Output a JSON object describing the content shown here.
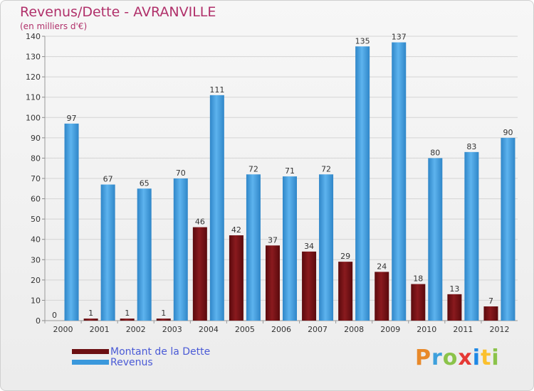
{
  "title": "Revenus/Dette - AVRANVILLE",
  "subtitle": "(en milliers d'€)",
  "colors": {
    "dette": "#6b0f12",
    "revenus": "#3a98dc",
    "title": "#b0306a",
    "legend_text": "#4a5ad6"
  },
  "brand": {
    "text": "Proxiti"
  },
  "chart_data": {
    "type": "bar",
    "title": "Revenus/Dette - AVRANVILLE",
    "ylabel": "(en milliers d'€)",
    "xlabel": "",
    "ylim": [
      0,
      140
    ],
    "yticks": [
      0,
      10,
      20,
      30,
      40,
      50,
      60,
      70,
      80,
      90,
      100,
      110,
      120,
      130,
      140
    ],
    "grid": true,
    "legend_position": "bottom-left",
    "categories": [
      "2000",
      "2001",
      "2002",
      "2003",
      "2004",
      "2005",
      "2006",
      "2007",
      "2008",
      "2009",
      "2010",
      "2011",
      "2012"
    ],
    "series": [
      {
        "name": "Montant de la Dette",
        "color": "#6b0f12",
        "values": [
          0,
          1,
          1,
          1,
          46,
          42,
          37,
          34,
          29,
          24,
          18,
          13,
          7
        ]
      },
      {
        "name": "Revenus",
        "color": "#3a98dc",
        "values": [
          97,
          67,
          65,
          70,
          111,
          72,
          71,
          72,
          135,
          137,
          80,
          83,
          90
        ]
      }
    ]
  }
}
